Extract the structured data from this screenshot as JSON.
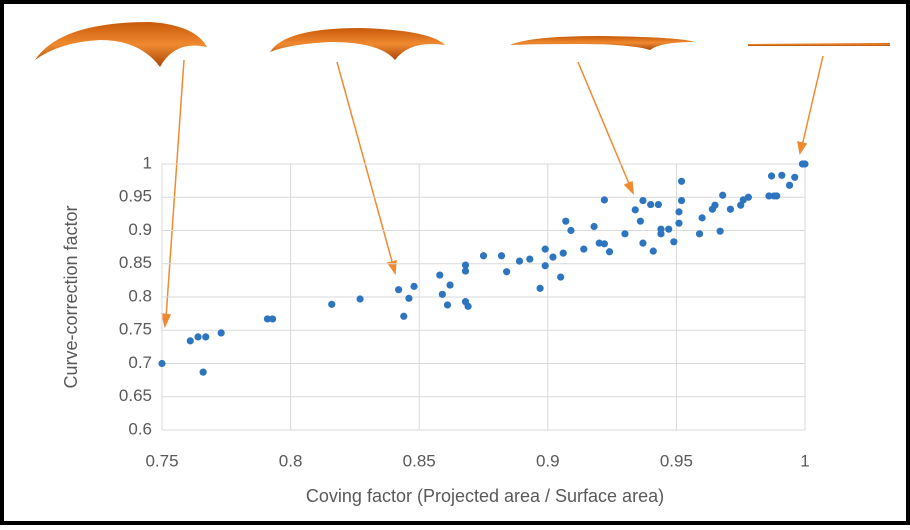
{
  "chart_data": {
    "type": "scatter",
    "xlabel": "Coving factor (Projected area / Surface area)",
    "ylabel": "Curve-correction factor",
    "xlim": [
      0.75,
      1
    ],
    "ylim": [
      0.6,
      1
    ],
    "xticks": [
      0.75,
      0.8,
      0.85,
      0.9,
      0.95,
      1
    ],
    "yticks": [
      0.6,
      0.65,
      0.7,
      0.75,
      0.8,
      0.85,
      0.9,
      0.95,
      1
    ],
    "grid": true,
    "series": [
      {
        "color": "#2e75c0",
        "x": [
          0.75,
          0.761,
          0.764,
          0.767,
          0.766,
          0.773,
          0.791,
          0.793,
          0.816,
          0.827,
          0.842,
          0.844,
          0.846,
          0.848,
          0.858,
          0.859,
          0.862,
          0.861,
          0.868,
          0.868,
          0.868,
          0.869,
          0.875,
          0.882,
          0.884,
          0.889,
          0.893,
          0.897,
          0.899,
          0.899,
          0.902,
          0.905,
          0.906,
          0.907,
          0.909,
          0.914,
          0.918,
          0.92,
          0.922,
          0.922,
          0.924,
          0.93,
          0.934,
          0.936,
          0.937,
          0.937,
          0.94,
          0.941,
          0.943,
          0.944,
          0.944,
          0.947,
          0.949,
          0.951,
          0.951,
          0.952,
          0.952,
          0.959,
          0.96,
          0.964,
          0.965,
          0.967,
          0.968,
          0.971,
          0.975,
          0.976,
          0.978,
          0.986,
          0.988,
          0.989,
          0.987,
          0.991,
          0.994,
          0.996,
          0.999,
          1.0
        ],
        "y": [
          0.7,
          0.734,
          0.74,
          0.74,
          0.687,
          0.746,
          0.767,
          0.767,
          0.789,
          0.797,
          0.811,
          0.771,
          0.798,
          0.816,
          0.833,
          0.804,
          0.818,
          0.788,
          0.848,
          0.839,
          0.793,
          0.786,
          0.862,
          0.862,
          0.838,
          0.854,
          0.857,
          0.813,
          0.872,
          0.847,
          0.86,
          0.83,
          0.866,
          0.914,
          0.9,
          0.872,
          0.906,
          0.881,
          0.88,
          0.946,
          0.868,
          0.895,
          0.931,
          0.914,
          0.945,
          0.881,
          0.939,
          0.869,
          0.939,
          0.895,
          0.902,
          0.902,
          0.883,
          0.911,
          0.928,
          0.945,
          0.974,
          0.895,
          0.919,
          0.932,
          0.938,
          0.899,
          0.953,
          0.932,
          0.938,
          0.946,
          0.95,
          0.952,
          0.952,
          0.952,
          0.982,
          0.983,
          0.968,
          0.98,
          1.0,
          1.0
        ]
      }
    ]
  }
}
